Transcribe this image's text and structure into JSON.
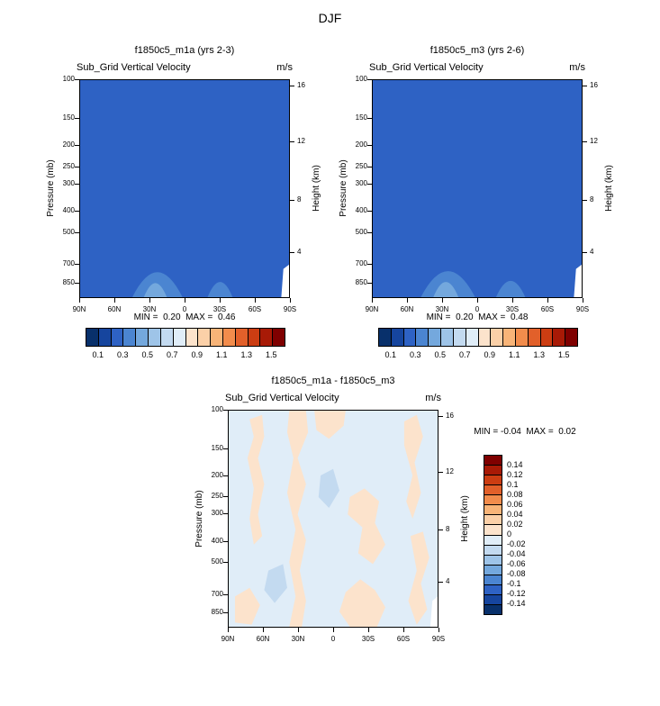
{
  "chart_data": {
    "type": "filled_contour",
    "figure_title": "DJF",
    "palette_main": [
      "#08306b",
      "#16459e",
      "#2e62c4",
      "#4b85d1",
      "#74a8dd",
      "#9ec4e8",
      "#c3daf0",
      "#e0edf8",
      "#fce3cc",
      "#fbd0a8",
      "#f8b478",
      "#f28c4c",
      "#e2602a",
      "#cc3d12",
      "#a81a06",
      "#7f0000"
    ],
    "palette_diff": [
      "#7f0000",
      "#a81a06",
      "#cc3d12",
      "#e2602a",
      "#f28c4c",
      "#f8b478",
      "#fbd0a8",
      "#fce3cc",
      "#e0edf8",
      "#c3daf0",
      "#9ec4e8",
      "#74a8dd",
      "#4b85d1",
      "#2e62c4",
      "#16459e",
      "#08306b"
    ],
    "panels": [
      {
        "id": "model1",
        "title": "f1850c5_m1a (yrs 2-3)",
        "subtitle": "Sub_Grid Vertical Velocity",
        "units": "m/s",
        "min": 0.2,
        "max": 0.46,
        "stats_text": "MIN =  0.20  MAX =  0.46",
        "ylabel_left": "Pressure (mb)",
        "ylabel_right": "Height (km)",
        "x_tick_labels": [
          "90N",
          "60N",
          "30N",
          "0",
          "30S",
          "60S",
          "90S"
        ],
        "pressure_ticks_mb": [
          100,
          150,
          200,
          250,
          300,
          400,
          500,
          700,
          850
        ],
        "height_ticks_km": [
          16,
          12,
          8,
          4
        ],
        "levels": [
          0.1,
          0.2,
          0.3,
          0.4,
          0.5,
          0.6,
          0.7,
          0.8,
          0.9,
          1.0,
          1.1,
          1.2,
          1.3,
          1.4,
          1.5
        ],
        "colorbar_labels": [
          "0.1",
          "0.3",
          "0.5",
          "0.7",
          "0.9",
          "1.1",
          "1.3",
          "1.5"
        ],
        "field": {
          "palette": "main",
          "background_color_index": 2,
          "features": [
            {
              "shape": "bump",
              "cx": 0.37,
              "hw": 0.12,
              "peak": 0.885,
              "ci": 3
            },
            {
              "shape": "bump",
              "cx": 0.36,
              "hw": 0.055,
              "peak": 0.935,
              "ci": 4
            },
            {
              "shape": "bump",
              "cx": 0.67,
              "hw": 0.06,
              "peak": 0.93,
              "ci": 3
            },
            {
              "shape": "polygon",
              "color": "#ffffff",
              "points": [
                [
                  0.963,
                  1
                ],
                [
                  0.973,
                  0.87
                ],
                [
                  1,
                  0.85
                ],
                [
                  1,
                  1
                ]
              ]
            }
          ]
        }
      },
      {
        "id": "model2",
        "title": "f1850c5_m3 (yrs 2-6)",
        "subtitle": "Sub_Grid Vertical Velocity",
        "units": "m/s",
        "min": 0.2,
        "max": 0.48,
        "stats_text": "MIN =  0.20  MAX =  0.48",
        "ylabel_left": "Pressure (mb)",
        "ylabel_right": "Height (km)",
        "x_tick_labels": [
          "90N",
          "60N",
          "30N",
          "0",
          "30S",
          "60S",
          "90S"
        ],
        "pressure_ticks_mb": [
          100,
          150,
          200,
          250,
          300,
          400,
          500,
          700,
          850
        ],
        "height_ticks_km": [
          16,
          12,
          8,
          4
        ],
        "levels": [
          0.1,
          0.2,
          0.3,
          0.4,
          0.5,
          0.6,
          0.7,
          0.8,
          0.9,
          1.0,
          1.1,
          1.2,
          1.3,
          1.4,
          1.5
        ],
        "colorbar_labels": [
          "0.1",
          "0.3",
          "0.5",
          "0.7",
          "0.9",
          "1.1",
          "1.3",
          "1.5"
        ],
        "field": {
          "palette": "main",
          "background_color_index": 2,
          "features": [
            {
              "shape": "bump",
              "cx": 0.36,
              "hw": 0.13,
              "peak": 0.88,
              "ci": 3
            },
            {
              "shape": "bump",
              "cx": 0.35,
              "hw": 0.06,
              "peak": 0.93,
              "ci": 4
            },
            {
              "shape": "bump",
              "cx": 0.66,
              "hw": 0.07,
              "peak": 0.925,
              "ci": 3
            },
            {
              "shape": "polygon",
              "color": "#ffffff",
              "points": [
                [
                  0.963,
                  1
                ],
                [
                  0.973,
                  0.87
                ],
                [
                  1,
                  0.85
                ],
                [
                  1,
                  1
                ]
              ]
            }
          ]
        }
      },
      {
        "id": "difference",
        "title": "f1850c5_m1a - f1850c5_m3",
        "subtitle": "Sub_Grid Vertical Velocity",
        "units": "m/s",
        "min": -0.04,
        "max": 0.02,
        "stats_text": "MIN = -0.04  MAX =  0.02",
        "ylabel_left": "Pressure (mb)",
        "ylabel_right": "Height (km)",
        "x_tick_labels": [
          "90N",
          "60N",
          "30N",
          "0",
          "30S",
          "60S",
          "90S"
        ],
        "pressure_ticks_mb": [
          100,
          150,
          200,
          250,
          300,
          400,
          500,
          700,
          850
        ],
        "height_ticks_km": [
          16,
          12,
          8,
          4
        ],
        "levels": [
          0.14,
          0.12,
          0.1,
          0.08,
          0.06,
          0.04,
          0.02,
          0,
          -0.02,
          -0.04,
          -0.06,
          -0.08,
          -0.1,
          -0.12,
          -0.14
        ],
        "colorbar_labels": [
          "0.14",
          "0.12",
          "0.1",
          "0.08",
          "0.06",
          "0.04",
          "0.02",
          "0",
          "-0.02",
          "-0.04",
          "-0.06",
          "-0.08",
          "-0.1",
          "-0.12",
          "-0.14"
        ],
        "field": {
          "palette": "diff",
          "background_color_index": 8,
          "features": [
            {
              "shape": "polygon",
              "ci": 7,
              "points": [
                [
                  0.1,
                  0.04
                ],
                [
                  0.16,
                  0.02
                ],
                [
                  0.17,
                  0.12
                ],
                [
                  0.14,
                  0.22
                ],
                [
                  0.17,
                  0.34
                ],
                [
                  0.14,
                  0.48
                ],
                [
                  0.16,
                  0.58
                ],
                [
                  0.12,
                  0.62
                ],
                [
                  0.1,
                  0.5
                ],
                [
                  0.12,
                  0.36
                ],
                [
                  0.09,
                  0.22
                ],
                [
                  0.12,
                  0.12
                ]
              ]
            },
            {
              "shape": "polygon",
              "ci": 7,
              "points": [
                [
                  0.29,
                  0
                ],
                [
                  0.37,
                  0
                ],
                [
                  0.38,
                  0.1
                ],
                [
                  0.33,
                  0.22
                ],
                [
                  0.37,
                  0.34
                ],
                [
                  0.33,
                  0.48
                ],
                [
                  0.37,
                  0.6
                ],
                [
                  0.34,
                  0.74
                ],
                [
                  0.37,
                  0.88
                ],
                [
                  0.35,
                  1
                ],
                [
                  0.29,
                  1
                ],
                [
                  0.32,
                  0.86
                ],
                [
                  0.29,
                  0.7
                ],
                [
                  0.32,
                  0.55
                ],
                [
                  0.28,
                  0.38
                ],
                [
                  0.31,
                  0.22
                ],
                [
                  0.28,
                  0.1
                ]
              ]
            },
            {
              "shape": "polygon",
              "ci": 7,
              "points": [
                [
                  0.41,
                  0
                ],
                [
                  0.56,
                  0
                ],
                [
                  0.55,
                  0.07
                ],
                [
                  0.48,
                  0.13
                ],
                [
                  0.42,
                  0.09
                ]
              ]
            },
            {
              "shape": "polygon",
              "ci": 7,
              "points": [
                [
                  0.84,
                  0.05
                ],
                [
                  0.9,
                  0.02
                ],
                [
                  0.93,
                  0.12
                ],
                [
                  0.89,
                  0.24
                ],
                [
                  0.92,
                  0.38
                ],
                [
                  0.88,
                  0.5
                ],
                [
                  0.85,
                  0.42
                ],
                [
                  0.88,
                  0.3
                ],
                [
                  0.84,
                  0.16
                ]
              ]
            },
            {
              "shape": "polygon",
              "ci": 7,
              "points": [
                [
                  0.58,
                  0.4
                ],
                [
                  0.65,
                  0.36
                ],
                [
                  0.72,
                  0.42
                ],
                [
                  0.7,
                  0.52
                ],
                [
                  0.75,
                  0.62
                ],
                [
                  0.69,
                  0.71
                ],
                [
                  0.62,
                  0.66
                ],
                [
                  0.64,
                  0.54
                ],
                [
                  0.57,
                  0.48
                ]
              ]
            },
            {
              "shape": "polygon",
              "ci": 7,
              "points": [
                [
                  0.56,
                  0.84
                ],
                [
                  0.63,
                  0.78
                ],
                [
                  0.7,
                  0.83
                ],
                [
                  0.75,
                  0.91
                ],
                [
                  0.71,
                  1
                ],
                [
                  0.58,
                  1
                ],
                [
                  0.53,
                  0.93
                ]
              ]
            },
            {
              "shape": "polygon",
              "ci": 7,
              "points": [
                [
                  0.87,
                  0.58
                ],
                [
                  0.93,
                  0.56
                ],
                [
                  0.96,
                  0.68
                ],
                [
                  0.92,
                  0.8
                ],
                [
                  0.95,
                  0.92
                ],
                [
                  0.9,
                  0.99
                ],
                [
                  0.86,
                  0.88
                ],
                [
                  0.9,
                  0.74
                ]
              ]
            },
            {
              "shape": "polygon",
              "ci": 7,
              "points": [
                [
                  0.03,
                  0.86
                ],
                [
                  0.1,
                  0.82
                ],
                [
                  0.15,
                  0.9
                ],
                [
                  0.11,
                  0.99
                ],
                [
                  0.03,
                  0.98
                ]
              ]
            },
            {
              "shape": "polygon",
              "ci": 9,
              "points": [
                [
                  0.44,
                  0.3
                ],
                [
                  0.5,
                  0.27
                ],
                [
                  0.53,
                  0.37
                ],
                [
                  0.48,
                  0.45
                ],
                [
                  0.43,
                  0.4
                ]
              ]
            },
            {
              "shape": "polygon",
              "ci": 9,
              "points": [
                [
                  0.19,
                  0.74
                ],
                [
                  0.26,
                  0.71
                ],
                [
                  0.28,
                  0.82
                ],
                [
                  0.22,
                  0.89
                ],
                [
                  0.17,
                  0.83
                ]
              ]
            },
            {
              "shape": "polygon",
              "color": "#ffffff",
              "points": [
                [
                  0.965,
                  1
                ],
                [
                  0.975,
                  0.88
                ],
                [
                  1,
                  0.86
                ],
                [
                  1,
                  1
                ]
              ]
            }
          ]
        }
      }
    ]
  }
}
